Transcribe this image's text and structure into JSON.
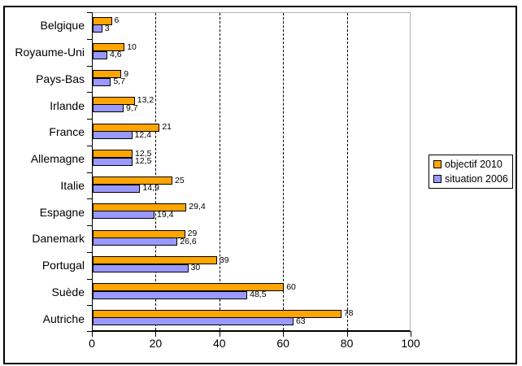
{
  "chart_data": {
    "type": "bar",
    "orientation": "horizontal",
    "title": "",
    "xlabel": "",
    "ylabel": "",
    "xlim": [
      0,
      100
    ],
    "x_tick_labels": [
      "0",
      "20",
      "40",
      "60",
      "80",
      "100"
    ],
    "x_tick_values": [
      0,
      20,
      40,
      60,
      80,
      100
    ],
    "gridline_values": [
      20,
      40,
      60,
      80
    ],
    "grid_style": "dashed-vertical",
    "legend_position": "right",
    "categories": [
      "Belgique",
      "Royaume-Uni",
      "Pays-Bas",
      "Irlande",
      "France",
      "Allemagne",
      "Italie",
      "Espagne",
      "Danemark",
      "Portugal",
      "Suède",
      "Autriche"
    ],
    "series": [
      {
        "name": "objectif 2010",
        "color": "#FFA500",
        "values": [
          6,
          10,
          9,
          13.2,
          21,
          12.5,
          25,
          29.4,
          29,
          39,
          60,
          78
        ],
        "labels": [
          "6",
          "10",
          "9",
          "13,2",
          "21",
          "12,5",
          "25",
          "29,4",
          "29",
          "39",
          "60",
          "78"
        ]
      },
      {
        "name": "situation 2006",
        "color": "#9999FF",
        "values": [
          3,
          4.6,
          5.7,
          9.7,
          12.4,
          12.5,
          14.9,
          19.4,
          26.6,
          30,
          48.5,
          63
        ],
        "labels": [
          "3",
          "4,6",
          "5,7",
          "9,7",
          "12,4",
          "12,5",
          "14,9",
          "19,4",
          "26,6",
          "30",
          "48,5",
          "63"
        ]
      }
    ],
    "colors": {
      "bar_border": "#000000",
      "axis": "#000000",
      "plot_border_light": "#b3b3b3",
      "gridline": "#000000",
      "background": "#ffffff"
    }
  }
}
